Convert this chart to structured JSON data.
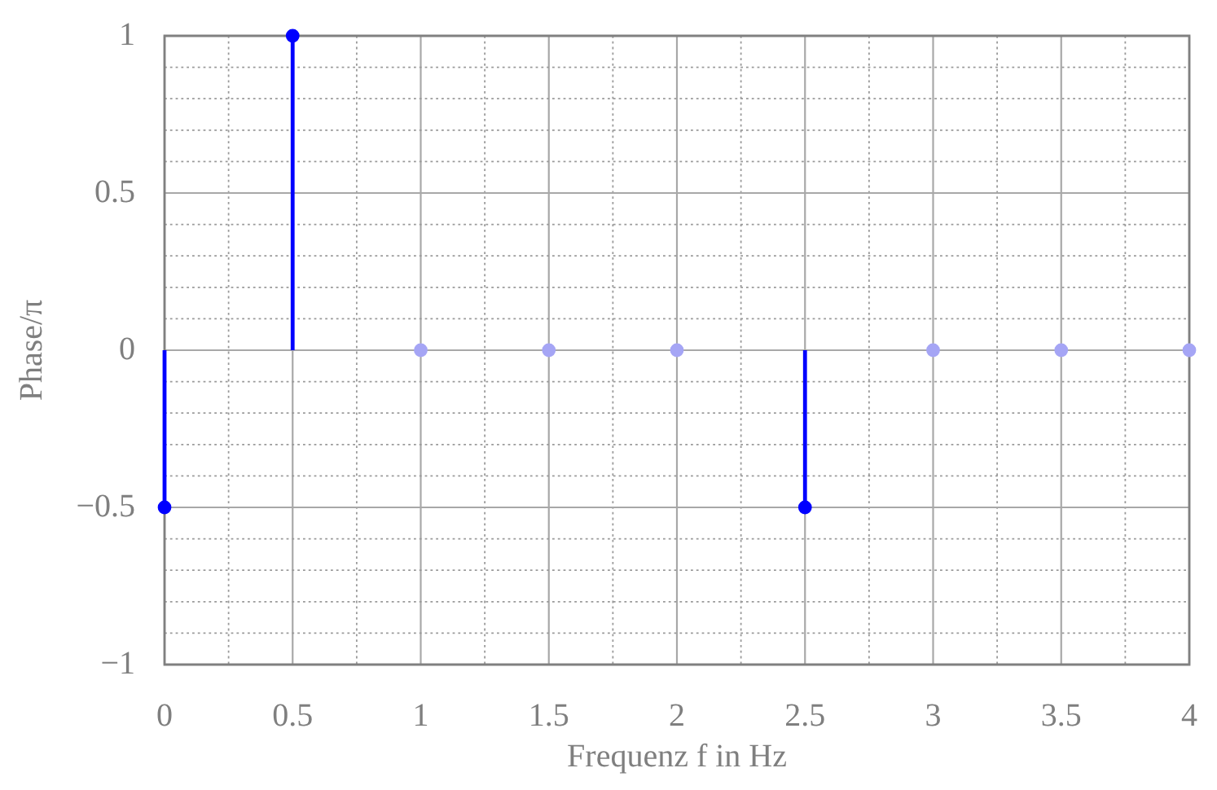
{
  "chart_data": {
    "type": "lollipop",
    "xlabel": "Frequenz f in Hz",
    "ylabel": "Phase/π",
    "x": [
      0,
      0.5,
      1,
      1.5,
      2,
      2.5,
      3,
      3.5,
      4
    ],
    "values": [
      -0.5,
      1,
      0,
      0,
      0,
      -0.5,
      0,
      0,
      0
    ],
    "colors": [
      "#0000ff",
      "#0000ff",
      "#a5a5f5",
      "#a5a5f5",
      "#a5a5f5",
      "#0000ff",
      "#a5a5f5",
      "#a5a5f5",
      "#a5a5f5"
    ],
    "xlim": [
      0,
      4
    ],
    "ylim": [
      -1,
      1
    ],
    "xticks": [
      0,
      {
        "value": 0.25,
        "label": null
      },
      0.5,
      {
        "value": 0.75,
        "label": null
      },
      1,
      {
        "value": 1.25,
        "label": null
      },
      1.5,
      {
        "value": 1.75,
        "label": null
      },
      2,
      {
        "value": 2.25,
        "label": null
      },
      2.5,
      {
        "value": 2.75,
        "label": null
      },
      3,
      {
        "value": 3.25,
        "label": null
      },
      3.5,
      {
        "value": 3.75,
        "label": null
      },
      4
    ],
    "yticks": [
      {
        "value": -1,
        "label": "−1"
      },
      {
        "value": -0.9,
        "label": null
      },
      {
        "value": -0.8,
        "label": null
      },
      {
        "value": -0.7,
        "label": null
      },
      {
        "value": -0.6,
        "label": null
      },
      {
        "value": -0.5,
        "label": "−0.5"
      },
      {
        "value": -0.4,
        "label": null
      },
      {
        "value": -0.3,
        "label": null
      },
      {
        "value": -0.2,
        "label": null
      },
      {
        "value": -0.1,
        "label": null
      },
      0,
      {
        "value": 0.1,
        "label": null
      },
      {
        "value": 0.2,
        "label": null
      },
      {
        "value": 0.3,
        "label": null
      },
      {
        "value": 0.4,
        "label": null
      },
      0.5,
      {
        "value": 0.6,
        "label": null
      },
      {
        "value": 0.7,
        "label": null
      },
      {
        "value": 0.8,
        "label": null
      },
      {
        "value": 0.9,
        "label": null
      },
      1
    ],
    "grid": true,
    "marker": "circle"
  }
}
